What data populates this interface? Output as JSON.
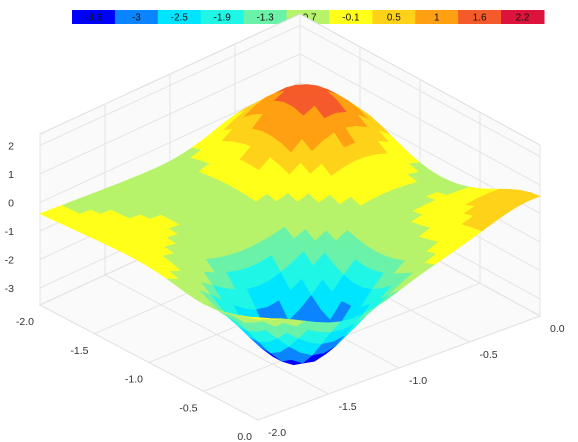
{
  "chart_data": {
    "type": "surface",
    "title": "",
    "legend": {
      "placement": "top",
      "colors": [
        "#0000ff",
        "#0a84ff",
        "#00e5ff",
        "#1ff6e6",
        "#6af2a8",
        "#b6f36a",
        "#ffff1a",
        "#ffd21a",
        "#ffa012",
        "#f55a2a",
        "#dc143c"
      ],
      "labels": [
        "-3.6",
        "-3",
        "-2.5",
        "-1.9",
        "-1.3",
        "-0.7",
        "-0.1",
        "0.5",
        "1",
        "1.6",
        "2.2"
      ]
    },
    "z_axis": {
      "ticks": [
        "2",
        "1",
        "0",
        "-1",
        "-2",
        "-3"
      ],
      "range": [
        -3.6,
        2.2
      ]
    },
    "x_axis": {
      "ticks": [
        "-2.0",
        "-1.5",
        "-1.0",
        "-0.5",
        "0.0"
      ],
      "range": [
        -2.0,
        0.0
      ]
    },
    "y_axis": {
      "ticks": [
        "-2.0",
        "-1.5",
        "-1.0",
        "-0.5",
        "0.0"
      ],
      "range": [
        -2.0,
        0.0
      ]
    },
    "surface": {
      "description_values": "z sampled on corner/edge of grid (x, y in data units)",
      "corner_values": [
        {
          "x": -2.0,
          "y": -2.0,
          "z": -2.0
        },
        {
          "x": 0.0,
          "y": -2.0,
          "z": -3.6
        },
        {
          "x": 0.0,
          "y": 0.0,
          "z": 2.2
        },
        {
          "x": -2.0,
          "y": 0.0,
          "z": 1.0
        }
      ]
    }
  }
}
